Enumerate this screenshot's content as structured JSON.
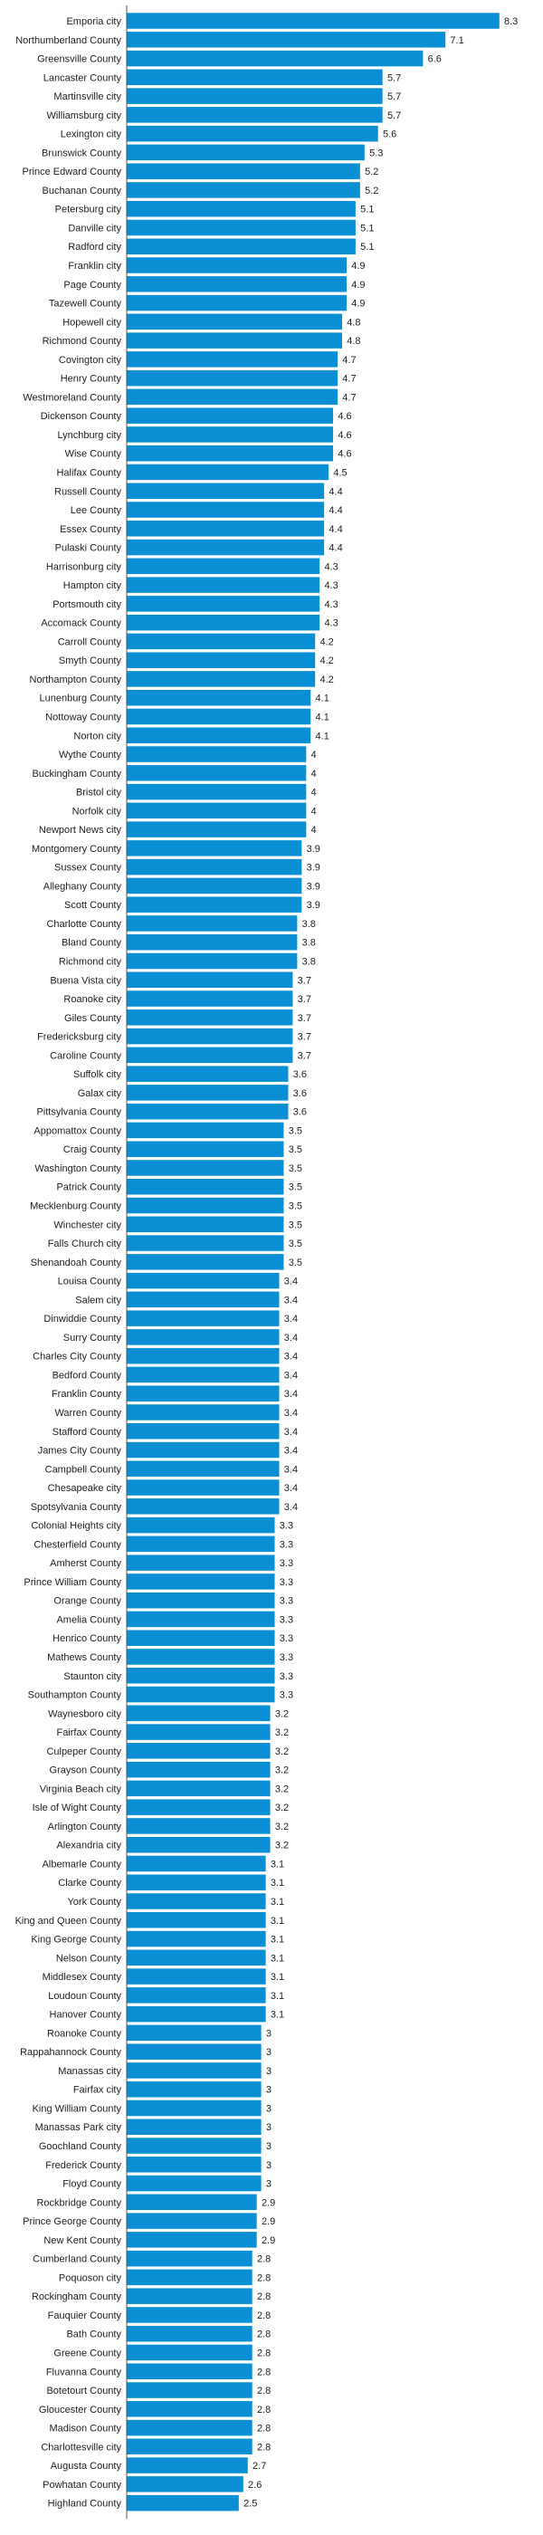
{
  "chart_data": {
    "type": "bar",
    "orientation": "horizontal",
    "bar_color": "#0b8fd4",
    "xlim": [
      0,
      8.3
    ],
    "grid": false,
    "legend": "none",
    "categories": [
      "Emporia city",
      "Northumberland County",
      "Greensville County",
      "Lancaster County",
      "Martinsville city",
      "Williamsburg city",
      "Lexington city",
      "Brunswick County",
      "Prince Edward County",
      "Buchanan County",
      "Petersburg city",
      "Danville city",
      "Radford city",
      "Franklin city",
      "Page County",
      "Tazewell County",
      "Hopewell city",
      "Richmond County",
      "Covington city",
      "Henry County",
      "Westmoreland County",
      "Dickenson County",
      "Lynchburg city",
      "Wise County",
      "Halifax County",
      "Russell County",
      "Lee County",
      "Essex County",
      "Pulaski County",
      "Harrisonburg city",
      "Hampton city",
      "Portsmouth city",
      "Accomack County",
      "Carroll County",
      "Smyth County",
      "Northampton County",
      "Lunenburg County",
      "Nottoway County",
      "Norton city",
      "Wythe County",
      "Buckingham County",
      "Bristol city",
      "Norfolk city",
      "Newport News city",
      "Montgomery County",
      "Sussex County",
      "Alleghany County",
      "Scott County",
      "Charlotte County",
      "Bland County",
      "Richmond city",
      "Buena Vista city",
      "Roanoke city",
      "Giles County",
      "Fredericksburg city",
      "Caroline County",
      "Suffolk city",
      "Galax city",
      "Pittsylvania County",
      "Appomattox County",
      "Craig County",
      "Washington County",
      "Patrick County",
      "Mecklenburg County",
      "Winchester city",
      "Falls Church city",
      "Shenandoah County",
      "Louisa County",
      "Salem city",
      "Dinwiddie County",
      "Surry County",
      "Charles City County",
      "Bedford County",
      "Franklin County",
      "Warren County",
      "Stafford County",
      "James City County",
      "Campbell County",
      "Chesapeake city",
      "Spotsylvania County",
      "Colonial Heights city",
      "Chesterfield County",
      "Amherst County",
      "Prince William County",
      "Orange County",
      "Amelia County",
      "Henrico County",
      "Mathews County",
      "Staunton city",
      "Southampton County",
      "Waynesboro city",
      "Fairfax County",
      "Culpeper County",
      "Grayson County",
      "Virginia Beach city",
      "Isle of Wight County",
      "Arlington County",
      "Alexandria city",
      "Albemarle County",
      "Clarke County",
      "York County",
      "King and Queen County",
      "King George County",
      "Nelson County",
      "Middlesex County",
      "Loudoun County",
      "Hanover County",
      "Roanoke County",
      "Rappahannock County",
      "Manassas city",
      "Fairfax city",
      "King William County",
      "Manassas Park city",
      "Goochland County",
      "Frederick County",
      "Floyd County",
      "Rockbridge County",
      "Prince George County",
      "New Kent County",
      "Cumberland County",
      "Poquoson city",
      "Rockingham County",
      "Fauquier County",
      "Bath County",
      "Greene County",
      "Fluvanna County",
      "Botetourt County",
      "Gloucester County",
      "Madison County",
      "Charlottesville city",
      "Augusta County",
      "Powhatan County",
      "Highland County"
    ],
    "values": [
      8.3,
      7.1,
      6.6,
      5.7,
      5.7,
      5.7,
      5.6,
      5.3,
      5.2,
      5.2,
      5.1,
      5.1,
      5.1,
      4.9,
      4.9,
      4.9,
      4.8,
      4.8,
      4.7,
      4.7,
      4.7,
      4.6,
      4.6,
      4.6,
      4.5,
      4.4,
      4.4,
      4.4,
      4.4,
      4.3,
      4.3,
      4.3,
      4.3,
      4.2,
      4.2,
      4.2,
      4.1,
      4.1,
      4.1,
      4,
      4,
      4,
      4,
      4,
      3.9,
      3.9,
      3.9,
      3.9,
      3.8,
      3.8,
      3.8,
      3.7,
      3.7,
      3.7,
      3.7,
      3.7,
      3.6,
      3.6,
      3.6,
      3.5,
      3.5,
      3.5,
      3.5,
      3.5,
      3.5,
      3.5,
      3.5,
      3.4,
      3.4,
      3.4,
      3.4,
      3.4,
      3.4,
      3.4,
      3.4,
      3.4,
      3.4,
      3.4,
      3.4,
      3.4,
      3.3,
      3.3,
      3.3,
      3.3,
      3.3,
      3.3,
      3.3,
      3.3,
      3.3,
      3.3,
      3.2,
      3.2,
      3.2,
      3.2,
      3.2,
      3.2,
      3.2,
      3.2,
      3.1,
      3.1,
      3.1,
      3.1,
      3.1,
      3.1,
      3.1,
      3.1,
      3.1,
      3,
      3,
      3,
      3,
      3,
      3,
      3,
      3,
      3,
      2.9,
      2.9,
      2.9,
      2.8,
      2.8,
      2.8,
      2.8,
      2.8,
      2.8,
      2.8,
      2.8,
      2.8,
      2.8,
      2.8,
      2.7,
      2.6,
      2.5
    ]
  }
}
